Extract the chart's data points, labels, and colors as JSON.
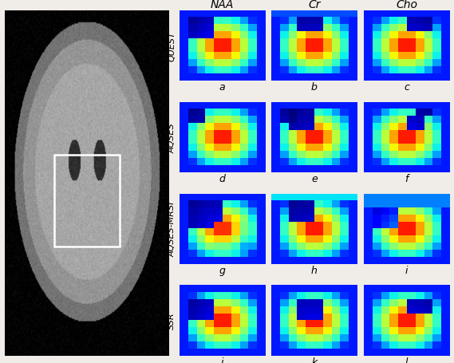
{
  "col_labels": [
    "NAA",
    "Cr",
    "Cho"
  ],
  "row_labels": [
    "QUEST",
    "AQSES",
    "AQSES-MRSI",
    "SSR"
  ],
  "subplot_labels": [
    [
      "a",
      "b",
      "c"
    ],
    [
      "d",
      "e",
      "f"
    ],
    [
      "g",
      "h",
      "i"
    ],
    [
      "j",
      "k",
      "l"
    ]
  ],
  "col_label_fontsize": 10,
  "row_label_fontsize": 8,
  "subplot_label_fontsize": 9,
  "background_color": "#f0ece8"
}
